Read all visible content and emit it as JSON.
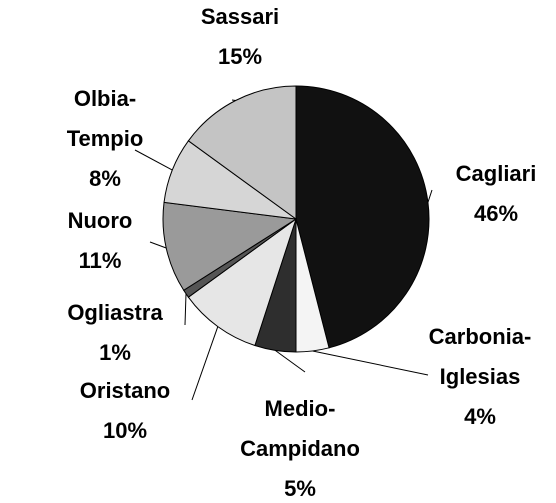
{
  "chart_data": {
    "type": "pie",
    "categories": [
      "Cagliari",
      "Carbonia-Iglesias",
      "Medio-Campidano",
      "Oristano",
      "Ogliastra",
      "Nuoro",
      "Olbia-Tempio",
      "Sassari"
    ],
    "values": [
      46,
      4,
      5,
      10,
      1,
      11,
      8,
      15
    ],
    "value_labels": [
      "46%",
      "4%",
      "5%",
      "10%",
      "1%",
      "11%",
      "8%",
      "15%"
    ],
    "colors": [
      "#111111",
      "#f4f4f4",
      "#2e2e2e",
      "#e6e6e6",
      "#555555",
      "#9a9a9a",
      "#d6d6d6",
      "#c4c4c4"
    ]
  }
}
